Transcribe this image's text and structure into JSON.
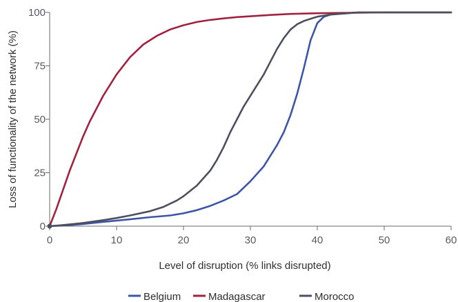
{
  "chart_data": {
    "type": "line",
    "title": "",
    "xlabel": "Level of disruption (% links disrupted)",
    "ylabel": "Loss of functionality of the network (%)",
    "xlim": [
      0,
      60
    ],
    "ylim": [
      0,
      100
    ],
    "xticks": [
      0,
      10,
      20,
      30,
      40,
      50,
      60
    ],
    "yticks": [
      0,
      25,
      50,
      75,
      100
    ],
    "grid": false,
    "legend_position": "bottom",
    "series": [
      {
        "name": "Belgium",
        "color": "#3c55a5",
        "x": [
          0,
          2,
          5,
          8,
          10,
          12,
          15,
          18,
          20,
          22,
          24,
          26,
          28,
          30,
          32,
          34,
          35,
          36,
          37,
          38,
          39,
          40,
          41,
          42,
          44,
          46,
          50,
          55,
          60
        ],
        "y": [
          0,
          0.3,
          1,
          2,
          2.6,
          3.2,
          4.2,
          5,
          6,
          7.5,
          9.5,
          12,
          15,
          21,
          28,
          38,
          44,
          52,
          62,
          74,
          87,
          95,
          98,
          99,
          99.5,
          100,
          100,
          100,
          100
        ]
      },
      {
        "name": "Madagascar",
        "color": "#a0223f",
        "x": [
          0,
          1,
          2,
          3,
          4,
          5,
          6,
          8,
          10,
          12,
          14,
          16,
          18,
          20,
          22,
          24,
          26,
          28,
          30,
          33,
          36,
          40,
          45,
          50,
          60
        ],
        "y": [
          0,
          8,
          17,
          26,
          34,
          42,
          49,
          61,
          71,
          79,
          85,
          89,
          92,
          94,
          95.5,
          96.5,
          97.2,
          97.8,
          98.2,
          98.8,
          99.3,
          99.6,
          99.8,
          100,
          100
        ]
      },
      {
        "name": "Morocco",
        "color": "#4d4f5e",
        "x": [
          0,
          2,
          5,
          8,
          10,
          12,
          15,
          17,
          19,
          20,
          22,
          24,
          25,
          26,
          27,
          28,
          29,
          30,
          31,
          32,
          33,
          34,
          35,
          36,
          37,
          38,
          39,
          40,
          42,
          44,
          46,
          50,
          55,
          60
        ],
        "y": [
          0,
          0.5,
          1.5,
          2.8,
          3.8,
          5,
          7,
          9,
          12,
          14,
          19,
          26,
          31,
          37,
          44,
          50,
          56,
          61,
          66,
          71,
          77,
          83,
          88,
          92,
          94.5,
          96,
          97,
          98,
          99,
          99.5,
          100,
          100,
          100,
          100
        ]
      }
    ]
  }
}
